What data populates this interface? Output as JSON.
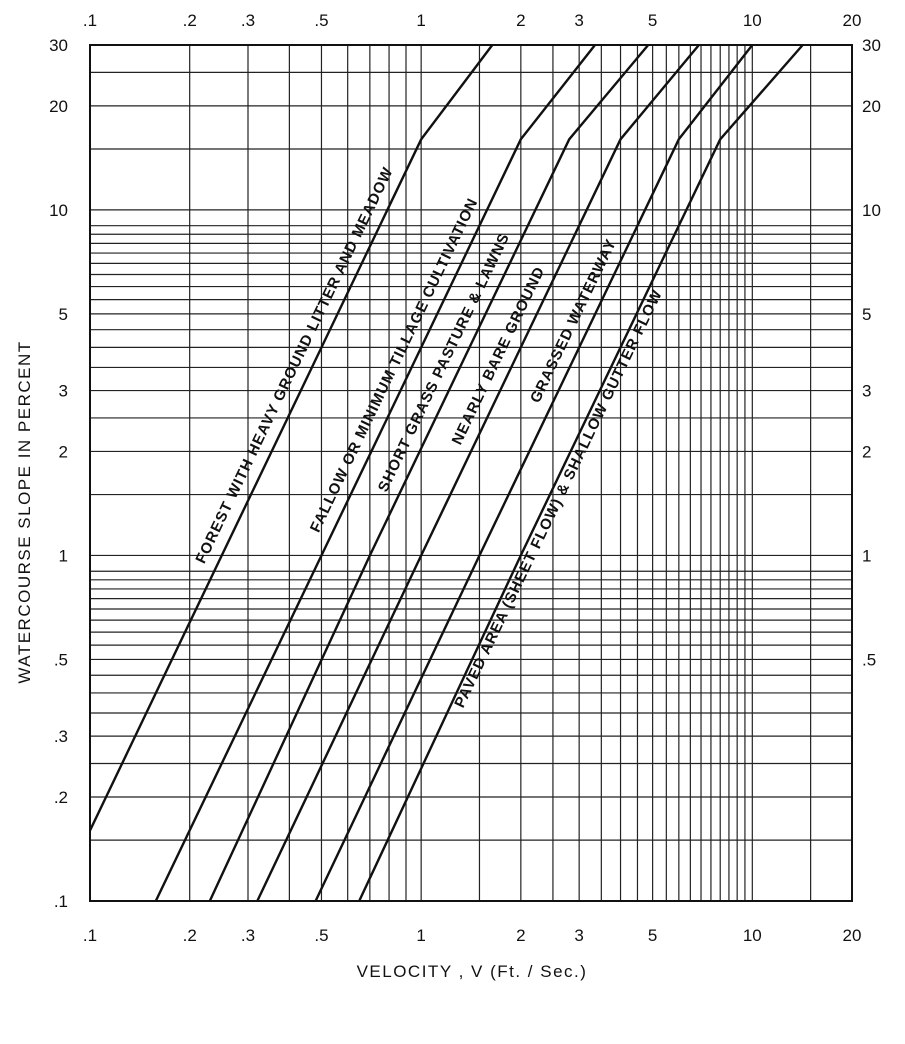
{
  "chart_data": {
    "type": "line",
    "x_scale": "log",
    "y_scale": "log",
    "xlabel": "VELOCITY , V (Ft. / Sec.)",
    "ylabel": "WATERCOURSE SLOPE IN PERCENT",
    "xlim": [
      0.1,
      20
    ],
    "ylim": [
      0.1,
      30
    ],
    "grid": true,
    "x_ticks": [
      {
        "value": 0.1,
        "label": ".1"
      },
      {
        "value": 0.2,
        "label": ".2"
      },
      {
        "value": 0.3,
        "label": ".3"
      },
      {
        "value": 0.5,
        "label": ".5"
      },
      {
        "value": 1,
        "label": "1"
      },
      {
        "value": 2,
        "label": "2"
      },
      {
        "value": 3,
        "label": "3"
      },
      {
        "value": 5,
        "label": "5"
      },
      {
        "value": 10,
        "label": "10"
      },
      {
        "value": 20,
        "label": "20"
      }
    ],
    "y_ticks_left": [
      {
        "value": 30,
        "label": "30"
      },
      {
        "value": 20,
        "label": "20"
      },
      {
        "value": 10,
        "label": "10"
      },
      {
        "value": 5,
        "label": "5"
      },
      {
        "value": 3,
        "label": "3"
      },
      {
        "value": 2,
        "label": "2"
      },
      {
        "value": 1,
        "label": "1"
      },
      {
        "value": 0.5,
        "label": ".5"
      },
      {
        "value": 0.3,
        "label": ".3"
      },
      {
        "value": 0.2,
        "label": ".2"
      },
      {
        "value": 0.1,
        "label": ".1"
      }
    ],
    "y_ticks_right": [
      {
        "value": 30,
        "label": "30"
      },
      {
        "value": 20,
        "label": "20"
      },
      {
        "value": 10,
        "label": "10"
      },
      {
        "value": 5,
        "label": "5"
      },
      {
        "value": 3,
        "label": "3"
      },
      {
        "value": 2,
        "label": "2"
      },
      {
        "value": 1,
        "label": "1"
      },
      {
        "value": 0.5,
        "label": ".5"
      }
    ],
    "series": [
      {
        "name": "FOREST WITH HEAVY GROUND LITTER AND MEADOW",
        "x": [
          0.1,
          0.25,
          0.5,
          1.0,
          1.64
        ],
        "y": [
          0.16,
          1.0,
          4.0,
          16.0,
          30
        ]
      },
      {
        "name": "FALLOW OR MINIMUM TILLAGE CULTIVATION",
        "x": [
          0.158,
          0.5,
          1.0,
          2.0,
          3.35
        ],
        "y": [
          0.1,
          1.0,
          4.0,
          16.0,
          30
        ]
      },
      {
        "name": "SHORT GRASS PASTURE & LAWNS",
        "x": [
          0.23,
          0.7,
          1.4,
          2.8,
          4.85
        ],
        "y": [
          0.1,
          1.0,
          4.0,
          16.0,
          30
        ]
      },
      {
        "name": "NEARLY BARE GROUND",
        "x": [
          0.32,
          1.0,
          2.0,
          4.0,
          6.9
        ],
        "y": [
          0.1,
          1.0,
          4.0,
          16.0,
          30
        ]
      },
      {
        "name": "GRASSED WATERWAY",
        "x": [
          0.48,
          1.5,
          3.0,
          6.0,
          10.0
        ],
        "y": [
          0.1,
          1.0,
          4.0,
          16.0,
          30
        ]
      },
      {
        "name": "PAVED AREA (SHEET FLOW) & SHALLOW GUTTER FLOW",
        "x": [
          0.65,
          2.0,
          4.0,
          8.0,
          14.2
        ],
        "y": [
          0.1,
          1.0,
          4.0,
          16.0,
          30
        ]
      }
    ]
  }
}
